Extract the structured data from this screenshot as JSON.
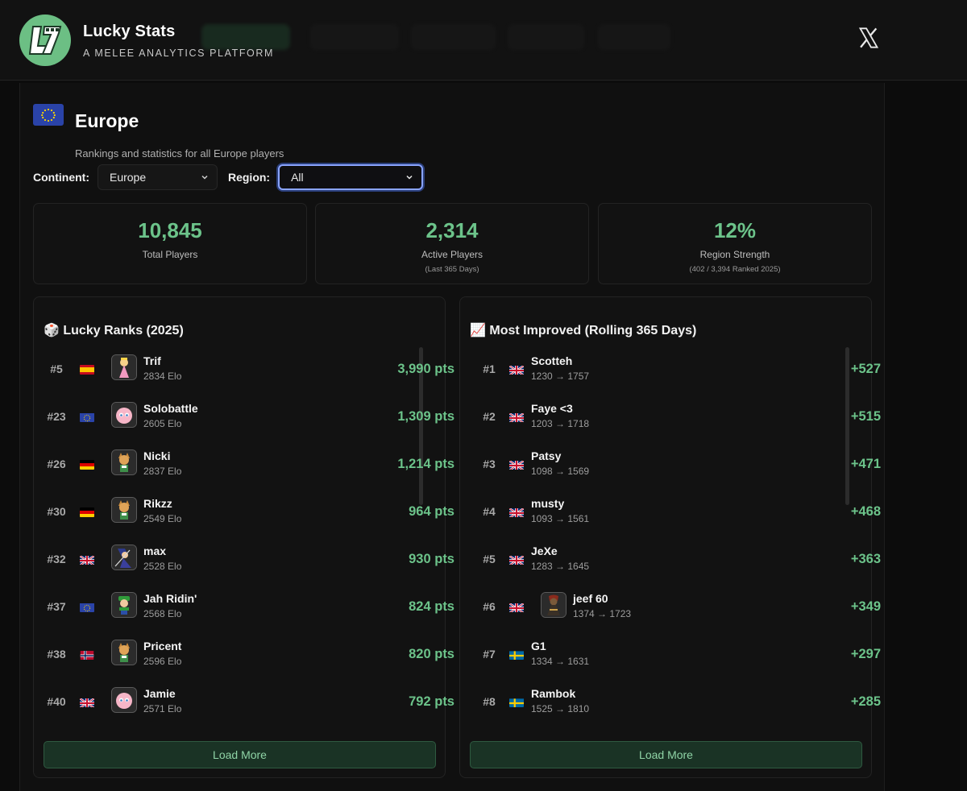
{
  "app": {
    "title": "Lucky Stats",
    "subtitle": "A MELEE ANALYTICS PLATFORM",
    "logo_text": "L7"
  },
  "region": {
    "title": "Europe",
    "description": "Rankings and statistics for all Europe players"
  },
  "filters": {
    "continent_label": "Continent:",
    "continent_value": "Europe",
    "region_label": "Region:",
    "region_value": "All"
  },
  "stats": [
    {
      "value": "10,845",
      "label": "Total Players",
      "sub": ""
    },
    {
      "value": "2,314",
      "label": "Active Players",
      "sub": "(Last 365 Days)"
    },
    {
      "value": "12%",
      "label": "Region Strength",
      "sub": "(402 / 3,394 Ranked 2025)"
    }
  ],
  "lucky_ranks": {
    "icon": "🎲",
    "title": "Lucky Ranks (2025)",
    "load_more": "Load More",
    "rows": [
      {
        "rank": "#5",
        "flag": "es",
        "avatar": "peach",
        "name": "Trif",
        "sub": "2834 Elo",
        "value": "3,990 pts"
      },
      {
        "rank": "#23",
        "flag": "eu",
        "avatar": "jigglypuff",
        "name": "Solobattle",
        "sub": "2605 Elo",
        "value": "1,309 pts"
      },
      {
        "rank": "#26",
        "flag": "de",
        "avatar": "fox",
        "name": "Nicki",
        "sub": "2837 Elo",
        "value": "1,214 pts"
      },
      {
        "rank": "#30",
        "flag": "de",
        "avatar": "fox",
        "name": "Rikzz",
        "sub": "2549 Elo",
        "value": "964 pts"
      },
      {
        "rank": "#32",
        "flag": "gb",
        "avatar": "marth",
        "name": "max",
        "sub": "2528 Elo",
        "value": "930 pts"
      },
      {
        "rank": "#37",
        "flag": "eu",
        "avatar": "luigi",
        "name": "Jah Ridin'",
        "sub": "2568 Elo",
        "value": "824 pts"
      },
      {
        "rank": "#38",
        "flag": "no",
        "avatar": "fox",
        "name": "Pricent",
        "sub": "2596 Elo",
        "value": "820 pts"
      },
      {
        "rank": "#40",
        "flag": "gb",
        "avatar": "jigglypuff",
        "name": "Jamie",
        "sub": "2571 Elo",
        "value": "792 pts"
      }
    ]
  },
  "most_improved": {
    "icon": "📈",
    "title": "Most Improved (Rolling 365 Days)",
    "load_more": "Load More",
    "rows": [
      {
        "rank": "#1",
        "flag": "gb",
        "avatar": "",
        "name": "Scotteh",
        "sub": "1230 → 1757",
        "value": "+527"
      },
      {
        "rank": "#2",
        "flag": "gb",
        "avatar": "",
        "name": "Faye <3",
        "sub": "1203 → 1718",
        "value": "+515"
      },
      {
        "rank": "#3",
        "flag": "gb",
        "avatar": "",
        "name": "Patsy",
        "sub": "1098 → 1569",
        "value": "+471"
      },
      {
        "rank": "#4",
        "flag": "gb",
        "avatar": "",
        "name": "musty",
        "sub": "1093 → 1561",
        "value": "+468"
      },
      {
        "rank": "#5",
        "flag": "gb",
        "avatar": "",
        "name": "JeXe",
        "sub": "1283 → 1645",
        "value": "+363"
      },
      {
        "rank": "#6",
        "flag": "gb",
        "avatar": "ganondorf",
        "name": "jeef 60",
        "sub": "1374 → 1723",
        "value": "+349"
      },
      {
        "rank": "#7",
        "flag": "se",
        "avatar": "",
        "name": "G1",
        "sub": "1334 → 1631",
        "value": "+297"
      },
      {
        "rank": "#8",
        "flag": "se",
        "avatar": "",
        "name": "Rambok",
        "sub": "1525 → 1810",
        "value": "+285"
      }
    ]
  },
  "colors": {
    "accent": "#6cc38a",
    "background": "#0c0c0c",
    "card": "#121212",
    "button": "#1a3325"
  }
}
